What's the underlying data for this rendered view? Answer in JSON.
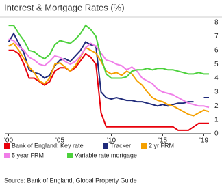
{
  "chart_data": {
    "type": "line",
    "title": "Interest & Mortgage Rates (%)",
    "source": "Source: Bank of England, Global Property Guide",
    "x": [
      2000,
      2000.5,
      2001,
      2001.5,
      2002,
      2002.5,
      2003,
      2003.5,
      2004,
      2004.5,
      2005,
      2005.5,
      2006,
      2006.5,
      2007,
      2007.5,
      2008,
      2008.5,
      2009,
      2009.5,
      2010,
      2010.5,
      2011,
      2011.5,
      2012,
      2012.5,
      2013,
      2013.5,
      2014,
      2014.5,
      2015,
      2015.5,
      2016,
      2016.5,
      2017,
      2017.5,
      2018,
      2018.5,
      2019,
      2019.5
    ],
    "series": [
      {
        "name": "Bank of England: Key rate",
        "color": "#e8000b",
        "values": [
          6,
          6,
          5.75,
          5,
          4,
          4,
          3.75,
          3.5,
          3.75,
          4.5,
          4.75,
          4.75,
          4.5,
          4.75,
          5.25,
          5.75,
          5.5,
          5,
          1.5,
          0.5,
          0.5,
          0.5,
          0.5,
          0.5,
          0.5,
          0.5,
          0.5,
          0.5,
          0.5,
          0.5,
          0.5,
          0.5,
          0.5,
          0.25,
          0.25,
          0.25,
          0.5,
          0.75,
          0.75,
          0.75
        ]
      },
      {
        "name": "Tracker",
        "color": "#1f2a7a",
        "values": [
          6.6,
          7.2,
          6.5,
          5.8,
          4.6,
          4.4,
          4.3,
          4.0,
          4.2,
          4.9,
          5.3,
          5.4,
          5.2,
          5.6,
          6.0,
          6.6,
          6.4,
          6.3,
          3.0,
          2.6,
          2.5,
          2.6,
          2.5,
          2.4,
          2.4,
          2.3,
          2.3,
          2.2,
          2.1,
          2.0,
          2.1,
          2.0,
          2.1,
          2.2,
          2.2,
          2.3,
          2.3,
          null,
          2.6,
          2.6
        ]
      },
      {
        "name": "2 yr FRM",
        "color": "#f5a000",
        "values": [
          6.3,
          6.5,
          6.0,
          5.4,
          4.8,
          4.4,
          3.8,
          3.6,
          4.0,
          5.0,
          5.1,
          4.8,
          4.5,
          4.9,
          5.5,
          6.2,
          6.0,
          5.8,
          5.2,
          4.5,
          4.3,
          4.4,
          4.2,
          4.5,
          4.3,
          3.8,
          3.5,
          3.0,
          2.6,
          2.4,
          2.3,
          2.1,
          2.0,
          1.8,
          1.6,
          1.4,
          1.3,
          1.5,
          1.7,
          1.6
        ]
      },
      {
        "name": "5 year FRM",
        "color": "#f07ee8",
        "values": [
          6.8,
          6.7,
          6.3,
          6.0,
          5.5,
          5.3,
          5.0,
          4.9,
          5.2,
          5.6,
          5.5,
          5.2,
          5.0,
          5.2,
          5.6,
          6.2,
          6.5,
          6.3,
          5.8,
          5.3,
          5.2,
          5.0,
          4.9,
          4.6,
          4.8,
          4.5,
          4.0,
          3.8,
          3.6,
          3.2,
          3.0,
          2.9,
          2.8,
          2.6,
          2.4,
          2.2,
          2.1,
          2.0,
          2.0,
          1.9
        ]
      },
      {
        "name": "Variable rate mortgage",
        "color": "#4cd13c",
        "values": [
          7.8,
          7.8,
          7.2,
          6.7,
          6.0,
          5.9,
          5.6,
          5.4,
          5.7,
          6.4,
          6.7,
          6.6,
          6.5,
          6.8,
          7.2,
          7.8,
          7.5,
          7.0,
          5.5,
          4.3,
          4.0,
          4.0,
          4.0,
          4.1,
          4.5,
          4.6,
          4.6,
          4.7,
          4.6,
          4.7,
          4.7,
          4.6,
          4.6,
          4.5,
          4.4,
          4.3,
          4.3,
          4.4,
          4.3,
          4.3
        ]
      }
    ],
    "xlim": [
      1999.7,
      2019.7
    ],
    "xticks": [
      {
        "value": 2000,
        "label": "'00"
      },
      {
        "value": 2005,
        "label": "'05"
      },
      {
        "value": 2010,
        "label": "'10"
      },
      {
        "value": 2015,
        "label": "'15"
      },
      {
        "value": 2019,
        "label": "'19"
      }
    ],
    "ylim": [
      0,
      8
    ],
    "yticks": [
      0,
      1,
      2,
      3,
      4,
      5,
      6,
      7,
      8
    ],
    "grid": false
  }
}
